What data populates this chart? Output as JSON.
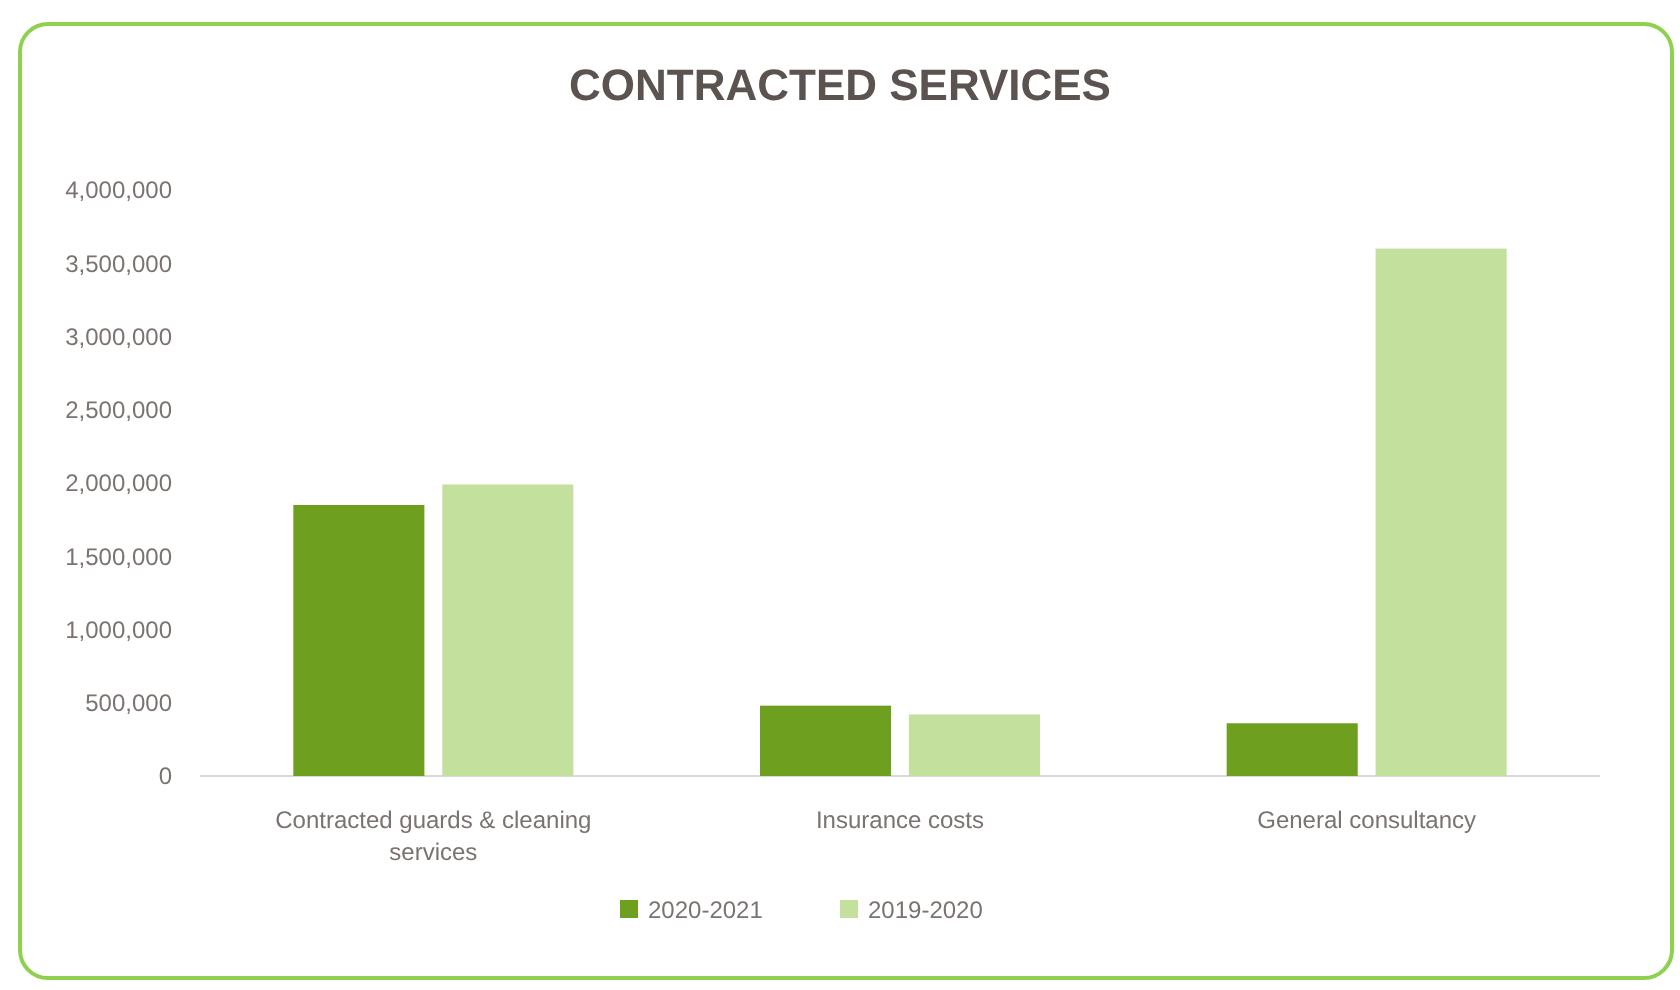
{
  "chart_data": {
    "type": "bar",
    "title": "CONTRACTED SERVICES",
    "categories": [
      "Contracted guards & cleaning services",
      "Insurance costs",
      "General consultancy"
    ],
    "series": [
      {
        "name": "2020-2021",
        "color": "#6f9f1e",
        "values": [
          1850000,
          480000,
          360000
        ]
      },
      {
        "name": "2019-2020",
        "color": "#c3e09c",
        "values": [
          1990000,
          420000,
          3600000
        ]
      }
    ],
    "ylim": [
      0,
      4000000
    ],
    "yticks": [
      {
        "value": 0,
        "label": "0"
      },
      {
        "value": 500000,
        "label": "500,000"
      },
      {
        "value": 1000000,
        "label": "1,000,000"
      },
      {
        "value": 1500000,
        "label": "1,500,000"
      },
      {
        "value": 2000000,
        "label": "2,000,000"
      },
      {
        "value": 2500000,
        "label": "2,500,000"
      },
      {
        "value": 3000000,
        "label": "3,000,000"
      },
      {
        "value": 3500000,
        "label": "3,500,000"
      },
      {
        "value": 4000000,
        "label": "4,000,000"
      }
    ],
    "grid": false,
    "legend": "bottom"
  }
}
